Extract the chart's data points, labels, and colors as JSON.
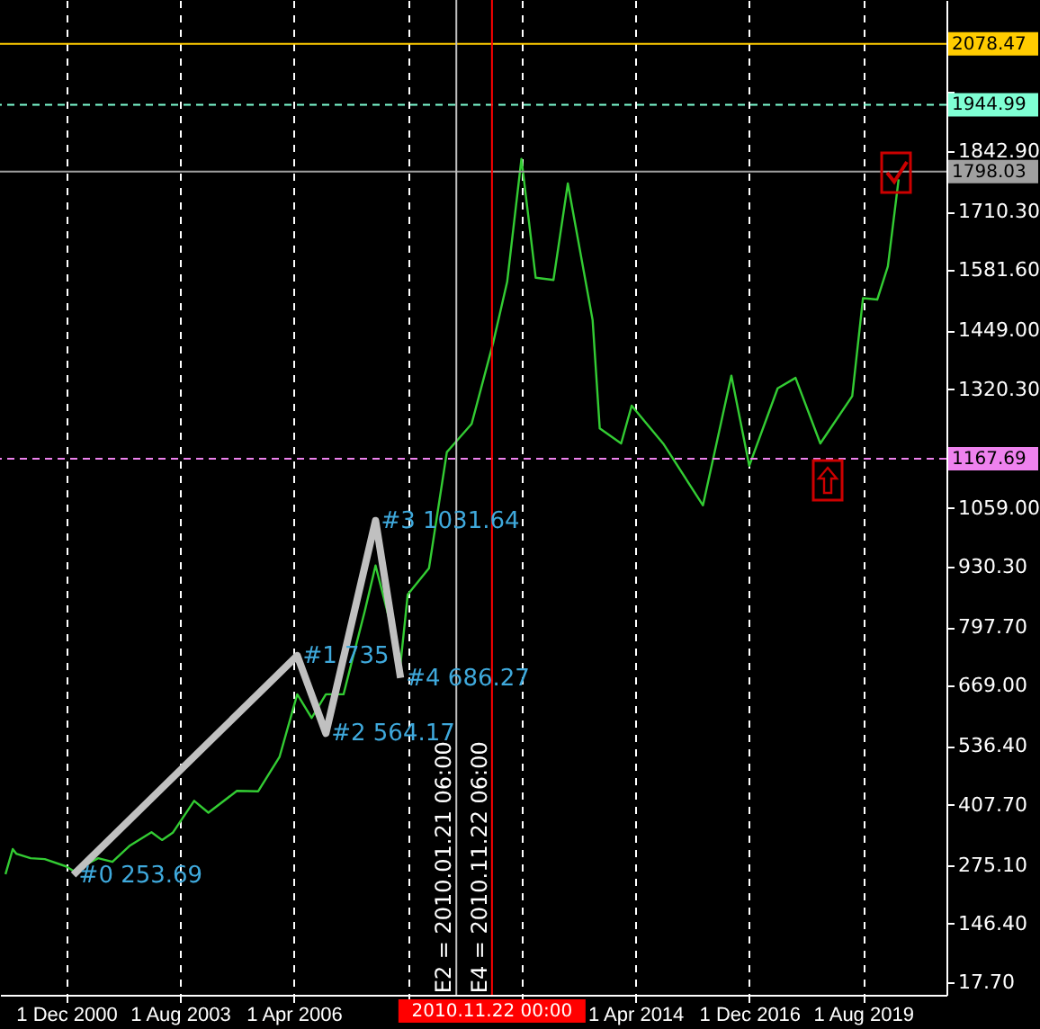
{
  "chart_data": {
    "type": "line",
    "x": [
      "1999-07",
      "1999-09",
      "1999-10",
      "2000-02",
      "2000-06",
      "2000-12",
      "2001-02",
      "2001-09",
      "2002-01",
      "2002-06",
      "2002-12",
      "2003-03",
      "2003-06",
      "2003-12",
      "2004-04",
      "2004-12",
      "2005-06",
      "2005-12",
      "2006-05",
      "2006-09",
      "2007-01",
      "2007-06",
      "2007-12",
      "2008-03",
      "2008-10",
      "2008-12",
      "2009-06",
      "2009-11",
      "2010-06",
      "2010-12",
      "2011-04",
      "2011-08",
      "2011-12",
      "2012-05",
      "2012-09",
      "2013-04",
      "2013-06",
      "2013-12",
      "2014-03",
      "2014-12",
      "2015-11",
      "2016-07",
      "2016-12",
      "2017-08",
      "2018-01",
      "2018-08",
      "2019-05",
      "2019-08",
      "2019-12",
      "2020-03",
      "2020-06"
    ],
    "series": [
      {
        "color": "#33cc33",
        "values": [
          255,
          310,
          300,
          290,
          288,
          272,
          262,
          290,
          282,
          318,
          347,
          330,
          346,
          416,
          390,
          438,
          437,
          513,
          650,
          598,
          650,
          650,
          834,
          933,
          718,
          869,
          927,
          1182,
          1244,
          1421,
          1556,
          1826,
          1565,
          1560,
          1772,
          1472,
          1234,
          1201,
          1284,
          1199,
          1065,
          1350,
          1152,
          1322,
          1345,
          1201,
          1305,
          1520,
          1517,
          1590,
          1781
        ]
      },
      {
        "color": "#c0c0c0",
        "x": [
          "2001-02",
          "2006-05",
          "2007-01",
          "2008-03",
          "2008-10"
        ],
        "values": [
          253.69,
          735,
          564.17,
          1031.64,
          686.27
        ]
      }
    ],
    "xlim": [
      "1999-05-15",
      "2021-07-15"
    ],
    "xticks": [
      {
        "value": "2000-12-01",
        "label": "1 Dec 2000"
      },
      {
        "value": "2003-08-01",
        "label": "1 Aug 2003"
      },
      {
        "value": "2006-04-01",
        "label": "1 Apr 2006"
      },
      {
        "value": "2008-12-01",
        "label": null
      },
      {
        "value": "2011-08-01",
        "label": null
      },
      {
        "value": "2014-04-01",
        "label": "1 Apr 2014"
      },
      {
        "value": "2016-12-01",
        "label": "1 Dec 2016"
      },
      {
        "value": "2019-08-01",
        "label": "1 Aug 2019"
      }
    ],
    "ylim": [
      -10,
      2175
    ],
    "yticks": [
      {
        "value": 17.7,
        "label": "17.70"
      },
      {
        "value": 146.4,
        "label": "146.40"
      },
      {
        "value": 275.1,
        "label": "275.10"
      },
      {
        "value": 407.7,
        "label": "407.70"
      },
      {
        "value": 536.4,
        "label": "536.40"
      },
      {
        "value": 669,
        "label": "669.00"
      },
      {
        "value": 797.7,
        "label": "797.70"
      },
      {
        "value": 930.3,
        "label": "930.30"
      },
      {
        "value": 1059,
        "label": "1059.00"
      },
      {
        "value": 1191.6,
        "label": null
      },
      {
        "value": 1320.3,
        "label": "1320.30"
      },
      {
        "value": 1449,
        "label": "1449.00"
      },
      {
        "value": 1581.6,
        "label": "1581.60"
      },
      {
        "value": 1710.3,
        "label": "1710.30"
      },
      {
        "value": 1842.9,
        "label": "1842.90"
      },
      {
        "value": 1971.6,
        "label": null
      },
      {
        "value": 2104.3,
        "label": null
      }
    ],
    "grid": "x",
    "ref_lines": [
      {
        "axis": "y",
        "value": 2078.47,
        "label": "2078.47",
        "color": "#ffcc00",
        "line_style": "solid"
      },
      {
        "axis": "y",
        "value": 1944.99,
        "label": "1944.99",
        "color": "#7fffd4",
        "line_style": "dashed"
      },
      {
        "axis": "y",
        "value": 1798.03,
        "label": "1798.03",
        "color": "#a0a0a0",
        "line_style": "solid"
      },
      {
        "axis": "y",
        "value": 1167.69,
        "label": "1167.69",
        "color": "#ee82ee",
        "line_style": "dashed"
      },
      {
        "axis": "x",
        "value": "2010-01-21",
        "color": "#c0c0c0",
        "line_style": "solid"
      },
      {
        "axis": "x",
        "value": "2010-11-22",
        "label": "2010.11.22 00:00",
        "color": "#ff0000",
        "line_style": "solid"
      }
    ],
    "annotations": [
      {
        "text": "#0 253.69",
        "x": "2001-02",
        "y": 253.69
      },
      {
        "text": "#1 735",
        "x": "2006-05",
        "y": 735
      },
      {
        "text": "#2 564.17",
        "x": "2007-01",
        "y": 564.17
      },
      {
        "text": "#3 1031.64",
        "x": "2008-03",
        "y": 1031.64
      },
      {
        "text": "#4 686.27",
        "x": "2008-10",
        "y": 686.27
      },
      {
        "text": "E2 = 2010.01.21 06:00",
        "x": "2010-01-21",
        "y": 270
      },
      {
        "text": "E4 = 2010.11.22 06:00",
        "x": "2010-11-22",
        "y": 270
      }
    ]
  }
}
